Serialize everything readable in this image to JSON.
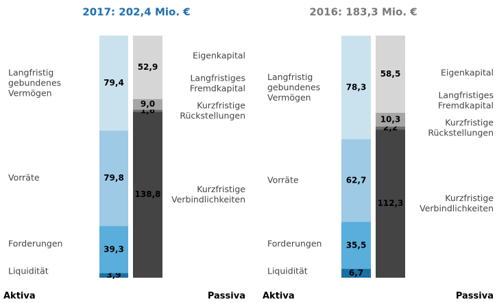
{
  "chart_data": [
    {
      "type": "stacked_bar",
      "title": "2017: 202,4 Mio. €",
      "title_color": "#1f6fb0",
      "categories": [
        "Aktiva",
        "Passiva"
      ],
      "series": [
        {
          "name": "Liquidität",
          "color": "#1a6fa5",
          "values": [
            3.9,
            null
          ],
          "value_labels": [
            "3,9",
            null
          ]
        },
        {
          "name": "Forderungen",
          "color": "#5aaedb",
          "values": [
            39.3,
            null
          ],
          "value_labels": [
            "39,3",
            null
          ]
        },
        {
          "name": "Vorräte",
          "color": "#9ecae5",
          "values": [
            79.8,
            null
          ],
          "value_labels": [
            "79,8",
            null
          ]
        },
        {
          "name": "Langfristig gebundenes Vermögen",
          "color": "#cae2ee",
          "values": [
            79.4,
            null
          ],
          "value_labels": [
            "79,4",
            null
          ]
        },
        {
          "name": "Kurzfristige Verbindlichkeiten",
          "color": "#444444",
          "values": [
            null,
            138.8
          ],
          "value_labels": [
            null,
            "138,8"
          ]
        },
        {
          "name": "Kurzfristige Rückstellungen",
          "color": "#6e6e6e",
          "values": [
            null,
            1.6
          ],
          "value_labels": [
            null,
            "1,6"
          ]
        },
        {
          "name": "Langfristiges Fremdkapital",
          "color": "#a6a6a6",
          "values": [
            null,
            9.0
          ],
          "value_labels": [
            null,
            "9,0"
          ]
        },
        {
          "name": "Eigenkapital",
          "color": "#d6d6d6",
          "values": [
            null,
            52.9
          ],
          "value_labels": [
            null,
            "52,9"
          ]
        }
      ]
    },
    {
      "type": "stacked_bar",
      "title": "2016: 183,3 Mio. €",
      "title_color": "#7a7a7a",
      "categories": [
        "Aktiva",
        "Passiva"
      ],
      "series": [
        {
          "name": "Liquidität",
          "color": "#1a6fa5",
          "values": [
            6.7,
            null
          ],
          "value_labels": [
            "6,7",
            null
          ]
        },
        {
          "name": "Forderungen",
          "color": "#5aaedb",
          "values": [
            35.5,
            null
          ],
          "value_labels": [
            "35,5",
            null
          ]
        },
        {
          "name": "Vorräte",
          "color": "#9ecae5",
          "values": [
            62.7,
            null
          ],
          "value_labels": [
            "62,7",
            null
          ]
        },
        {
          "name": "Langfristig gebundenes Vermögen",
          "color": "#cae2ee",
          "values": [
            78.3,
            null
          ],
          "value_labels": [
            "78,3",
            null
          ]
        },
        {
          "name": "Kurzfristige Verbindlichkeiten",
          "color": "#444444",
          "values": [
            null,
            112.3
          ],
          "value_labels": [
            null,
            "112,3"
          ]
        },
        {
          "name": "Kurzfristige Rückstellungen",
          "color": "#6e6e6e",
          "values": [
            null,
            2.2
          ],
          "value_labels": [
            null,
            "2,2"
          ]
        },
        {
          "name": "Langfristiges Fremdkapital",
          "color": "#a6a6a6",
          "values": [
            null,
            10.3
          ],
          "value_labels": [
            null,
            "10,3"
          ]
        },
        {
          "name": "Eigenkapital",
          "color": "#d6d6d6",
          "values": [
            null,
            58.5
          ],
          "value_labels": [
            null,
            "58,5"
          ]
        }
      ]
    }
  ]
}
